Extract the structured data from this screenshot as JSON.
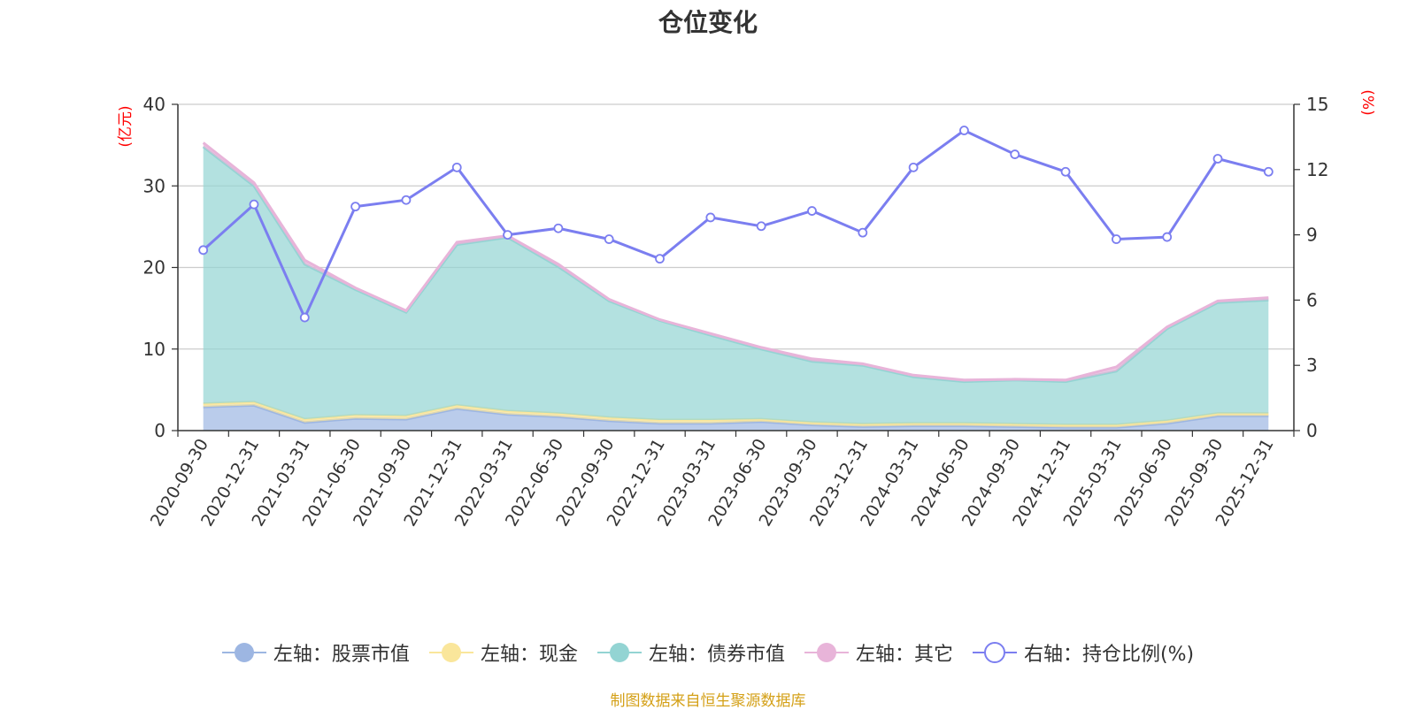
{
  "chart_data": {
    "type": "area",
    "title": "仓位变化",
    "left_axis_unit": "(亿元)",
    "right_axis_unit": "(%)",
    "left_ylim": [
      0,
      40
    ],
    "left_ticks": [
      0,
      10,
      20,
      30,
      40
    ],
    "right_ylim": [
      0,
      15
    ],
    "right_ticks": [
      0,
      3,
      6,
      9,
      12,
      15
    ],
    "categories": [
      "2020-09-30",
      "2020-12-31",
      "2021-03-31",
      "2021-06-30",
      "2021-09-30",
      "2021-12-31",
      "2022-03-31",
      "2022-06-30",
      "2022-09-30",
      "2022-12-31",
      "2023-03-31",
      "2023-06-30",
      "2023-09-30",
      "2023-12-31",
      "2024-03-31",
      "2024-06-30",
      "2024-09-30",
      "2024-12-31",
      "2025-03-31",
      "2025-06-30",
      "2025-09-30",
      "2025-12-31"
    ],
    "series": [
      {
        "name": "左轴：股票市值",
        "axis": "left",
        "kind": "stacked-area",
        "color": "#9db6e2",
        "values": [
          2.9,
          3.1,
          1.0,
          1.5,
          1.4,
          2.7,
          2.0,
          1.7,
          1.2,
          0.9,
          0.9,
          1.1,
          0.7,
          0.5,
          0.6,
          0.6,
          0.5,
          0.4,
          0.4,
          0.9,
          1.8,
          1.8
        ]
      },
      {
        "name": "左轴：现金",
        "axis": "left",
        "kind": "stacked-area",
        "color": "#fae69b",
        "values": [
          0.4,
          0.4,
          0.4,
          0.4,
          0.4,
          0.4,
          0.4,
          0.4,
          0.4,
          0.4,
          0.4,
          0.3,
          0.3,
          0.3,
          0.3,
          0.3,
          0.3,
          0.3,
          0.3,
          0.3,
          0.3,
          0.3
        ]
      },
      {
        "name": "左轴：债券市值",
        "axis": "left",
        "kind": "stacked-area",
        "color": "#93d4d3",
        "values": [
          31.5,
          26.5,
          19.0,
          15.4,
          12.7,
          19.7,
          21.3,
          18.0,
          14.3,
          12.2,
          10.4,
          8.6,
          7.5,
          7.2,
          5.7,
          5.1,
          5.4,
          5.3,
          6.6,
          11.3,
          13.6,
          13.9
        ]
      },
      {
        "name": "左轴：其它",
        "axis": "left",
        "kind": "stacked-area",
        "color": "#e8b4d9",
        "values": [
          0.5,
          0.4,
          0.5,
          0.2,
          0.2,
          0.3,
          0.2,
          0.3,
          0.2,
          0.1,
          0.2,
          0.2,
          0.3,
          0.2,
          0.2,
          0.2,
          0.1,
          0.2,
          0.5,
          0.2,
          0.2,
          0.3
        ]
      },
      {
        "name": "右轴：持仓比例(%)",
        "axis": "right",
        "kind": "line",
        "color": "#7b7ef0",
        "values": [
          8.3,
          10.4,
          5.2,
          10.3,
          10.6,
          12.1,
          9.0,
          9.3,
          8.8,
          7.9,
          9.8,
          9.4,
          10.1,
          9.1,
          12.1,
          13.8,
          12.7,
          11.9,
          8.8,
          8.9,
          12.5,
          11.9
        ]
      }
    ]
  },
  "footer": {
    "source": "制图数据来自恒生聚源数据库"
  }
}
